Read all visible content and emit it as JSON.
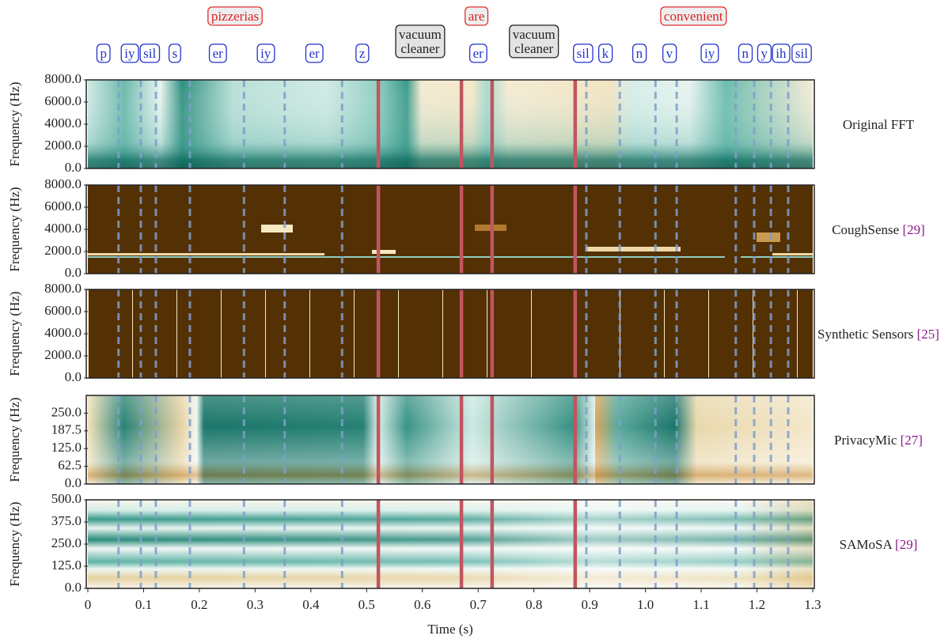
{
  "chart_data": [
    {
      "type": "heatmap",
      "name": "Original FFT",
      "ylabel": "Frequency (Hz)",
      "ylim": [
        0,
        8000
      ],
      "yticks": [
        {
          "value": 0,
          "label": "0.0"
        },
        {
          "value": 2000,
          "label": "2000.0"
        },
        {
          "value": 4000,
          "label": "4000.0"
        },
        {
          "value": 6000,
          "label": "6000.0"
        },
        {
          "value": 8000,
          "label": "8000.0"
        }
      ]
    },
    {
      "type": "heatmap",
      "name": "CoughSense",
      "cite": "[29]",
      "ylabel": "Frequency (Hz)",
      "ylim": [
        0,
        8000
      ],
      "yticks": [
        {
          "value": 0,
          "label": "0.0"
        },
        {
          "value": 2000,
          "label": "2000.0"
        },
        {
          "value": 4000,
          "label": "4000.0"
        },
        {
          "value": 6000,
          "label": "6000.0"
        },
        {
          "value": 8000,
          "label": "8000.0"
        }
      ]
    },
    {
      "type": "heatmap",
      "name": "Synthetic Sensors",
      "cite": "[25]",
      "ylabel": "Frequency (Hz)",
      "ylim": [
        0,
        8000
      ],
      "yticks": [
        {
          "value": 0,
          "label": "0.0"
        },
        {
          "value": 2000,
          "label": "2000.0"
        },
        {
          "value": 4000,
          "label": "4000.0"
        },
        {
          "value": 6000,
          "label": "6000.0"
        },
        {
          "value": 8000,
          "label": "8000.0"
        }
      ]
    },
    {
      "type": "heatmap",
      "name": "PrivacyMic",
      "cite": "[27]",
      "ylabel": "Frequency (Hz)",
      "ylim": [
        0,
        312.5
      ],
      "yticks": [
        {
          "value": 0,
          "label": "0.0"
        },
        62.5,
        {
          "value": 125,
          "label": "125.0"
        },
        187.5,
        {
          "value": 250,
          "label": "250.0"
        }
      ]
    },
    {
      "type": "heatmap",
      "name": "SAMoSA",
      "cite": "[29]",
      "ylabel": "Frequency (Hz)",
      "ylim": [
        0,
        500
      ],
      "yticks": [
        {
          "value": 0,
          "label": "0.0"
        },
        {
          "value": 125,
          "label": "125.0"
        },
        {
          "value": 250,
          "label": "250.0"
        },
        {
          "value": 375,
          "label": "375.0"
        },
        {
          "value": 500,
          "label": "500.0"
        }
      ]
    }
  ],
  "time_axis": {
    "label": "Time (s)",
    "xlim": [
      0,
      1.3
    ],
    "xticks": [
      0,
      0.1,
      0.2,
      0.3,
      0.4,
      0.5,
      0.6,
      0.7,
      0.8,
      0.9,
      {
        "value": 1,
        "label": "1.0"
      },
      1.1,
      1.2,
      1.3
    ]
  },
  "transcript": {
    "words": [
      {
        "label": "pizzerias",
        "x": 0.264
      },
      {
        "label": "are",
        "x": 0.697
      },
      {
        "label": "convenient",
        "x": 1.086
      }
    ],
    "noise_labels": [
      {
        "lines": [
          "vacuum",
          "cleaner"
        ],
        "x": 0.596
      },
      {
        "lines": [
          "vacuum",
          "cleaner"
        ],
        "x": 0.8
      }
    ],
    "phonemes": [
      {
        "label": "p",
        "x": 0.028
      },
      {
        "label": "iy",
        "x": 0.075
      },
      {
        "label": "sil",
        "x": 0.111
      },
      {
        "label": "s",
        "x": 0.156
      },
      {
        "label": "er",
        "x": 0.233
      },
      {
        "label": "iy",
        "x": 0.319
      },
      {
        "label": "er",
        "x": 0.406
      },
      {
        "label": "z",
        "x": 0.492
      },
      {
        "label": "er",
        "x": 0.7
      },
      {
        "label": "sil",
        "x": 0.888
      },
      {
        "label": "k",
        "x": 0.928
      },
      {
        "label": "n",
        "x": 0.989
      },
      {
        "label": "v",
        "x": 1.043
      },
      {
        "label": "iy",
        "x": 1.115
      },
      {
        "label": "n",
        "x": 1.179
      },
      {
        "label": "y",
        "x": 1.213
      },
      {
        "label": "ih",
        "x": 1.243
      },
      {
        "label": "sil",
        "x": 1.28
      }
    ],
    "boundaries": [
      0.055,
      0.095,
      0.122,
      0.183,
      0.28,
      0.353,
      0.456,
      0.894,
      0.954,
      1.018,
      1.056,
      1.162,
      1.195,
      1.225,
      1.256
    ],
    "noise_boundaries": [
      0.521,
      0.67,
      0.725,
      0.874
    ]
  }
}
